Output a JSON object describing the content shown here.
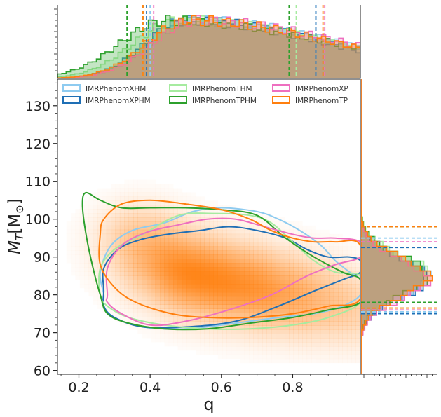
{
  "chart_data": {
    "type": "scatter",
    "title": "",
    "xlabel": "q",
    "ylabel": "M_T [M_⊙]",
    "ylabel_display": "M",
    "ylabel_sub": "T",
    "ylabel_rest": "[M",
    "ylabel_sun": "⊙",
    "ylabel_close": "]",
    "xlim": [
      0.14,
      0.99
    ],
    "ylim": [
      59,
      137
    ],
    "x_ticks": [
      0.2,
      0.4,
      0.6,
      0.8
    ],
    "x_tick_labels": [
      "0.2",
      "0.4",
      "0.6",
      "0.8"
    ],
    "y_ticks": [
      60,
      70,
      80,
      90,
      100,
      110,
      120,
      130
    ],
    "y_tick_labels": [
      "60",
      "70",
      "80",
      "90",
      "100",
      "110",
      "120",
      "130"
    ],
    "legend": {
      "placement": "top-left",
      "entries": [
        "IMRPhenomXHM",
        "IMRPhenomTHM",
        "IMRPhenomXP",
        "IMRPhenomXPHM",
        "IMRPhenomTPHM",
        "IMRPhenomTP"
      ]
    },
    "density_peak": {
      "x": 0.53,
      "y": 85
    },
    "series": [
      {
        "name": "IMRPhenomXHM",
        "color": "#8ecbf0",
        "contour": [
          [
            0.27,
            80
          ],
          [
            0.26,
            86
          ],
          [
            0.29,
            93
          ],
          [
            0.35,
            97
          ],
          [
            0.44,
            99
          ],
          [
            0.52,
            102
          ],
          [
            0.6,
            103
          ],
          [
            0.7,
            102
          ],
          [
            0.76,
            100
          ],
          [
            0.82,
            97
          ],
          [
            0.88,
            93
          ],
          [
            0.92,
            89
          ],
          [
            0.96,
            86
          ],
          [
            0.99,
            84
          ],
          [
            0.99,
            80
          ],
          [
            0.94,
            77
          ],
          [
            0.86,
            75
          ],
          [
            0.76,
            74
          ],
          [
            0.64,
            72.5
          ],
          [
            0.5,
            71
          ],
          [
            0.38,
            71.5
          ],
          [
            0.3,
            74
          ],
          [
            0.27,
            77
          ]
        ],
        "q_quantiles": [
          0.4,
          0.865
        ],
        "mt_quantiles": [
          75.5,
          95
        ]
      },
      {
        "name": "IMRPhenomXPHM",
        "color": "#1f6fb5",
        "contour": [
          [
            0.27,
            81
          ],
          [
            0.27,
            87
          ],
          [
            0.31,
            92
          ],
          [
            0.37,
            94.5
          ],
          [
            0.45,
            96
          ],
          [
            0.54,
            97
          ],
          [
            0.62,
            98
          ],
          [
            0.7,
            97
          ],
          [
            0.78,
            95
          ],
          [
            0.84,
            92
          ],
          [
            0.9,
            90
          ],
          [
            0.96,
            90
          ],
          [
            0.99,
            89
          ],
          [
            0.99,
            86
          ],
          [
            0.94,
            84
          ],
          [
            0.86,
            81
          ],
          [
            0.76,
            77
          ],
          [
            0.64,
            73
          ],
          [
            0.5,
            71.5
          ],
          [
            0.38,
            71.5
          ],
          [
            0.3,
            74
          ],
          [
            0.27,
            77
          ]
        ],
        "q_quantiles": [
          0.39,
          0.865
        ],
        "mt_quantiles": [
          75,
          92.5
        ]
      },
      {
        "name": "IMRPhenomTHM",
        "color": "#a6eba0",
        "contour": [
          [
            0.26,
            80
          ],
          [
            0.26,
            87
          ],
          [
            0.3,
            92
          ],
          [
            0.38,
            96
          ],
          [
            0.48,
            101
          ],
          [
            0.58,
            101.5
          ],
          [
            0.68,
            101
          ],
          [
            0.74,
            99
          ],
          [
            0.8,
            94
          ],
          [
            0.86,
            89
          ],
          [
            0.92,
            86
          ],
          [
            0.99,
            85
          ],
          [
            0.99,
            78
          ],
          [
            0.9,
            74
          ],
          [
            0.8,
            72
          ],
          [
            0.68,
            71
          ],
          [
            0.56,
            71
          ],
          [
            0.44,
            72
          ],
          [
            0.34,
            74
          ],
          [
            0.28,
            77
          ]
        ],
        "q_quantiles": [
          0.38,
          0.81
        ],
        "mt_quantiles": [
          76.5,
          98
        ]
      },
      {
        "name": "IMRPhenomTPHM",
        "color": "#2ca02c",
        "contour": [
          [
            0.22,
            107
          ],
          [
            0.26,
            105
          ],
          [
            0.32,
            103
          ],
          [
            0.4,
            103
          ],
          [
            0.5,
            103
          ],
          [
            0.6,
            102.5
          ],
          [
            0.7,
            101
          ],
          [
            0.78,
            95
          ],
          [
            0.86,
            90
          ],
          [
            0.94,
            86
          ],
          [
            0.99,
            84
          ],
          [
            0.99,
            78
          ],
          [
            0.9,
            76
          ],
          [
            0.8,
            74
          ],
          [
            0.68,
            72.5
          ],
          [
            0.56,
            71
          ],
          [
            0.44,
            71
          ],
          [
            0.34,
            72.5
          ],
          [
            0.28,
            75
          ],
          [
            0.26,
            80
          ],
          [
            0.24,
            87
          ],
          [
            0.22,
            96
          ],
          [
            0.21,
            104
          ]
        ],
        "q_quantiles": [
          0.335,
          0.79
        ],
        "mt_quantiles": [
          78,
          98
        ]
      },
      {
        "name": "IMRPhenomXP",
        "color": "#ee6fc0",
        "contour": [
          [
            0.28,
            80
          ],
          [
            0.28,
            87
          ],
          [
            0.32,
            93
          ],
          [
            0.39,
            96.5
          ],
          [
            0.48,
            98.5
          ],
          [
            0.56,
            100
          ],
          [
            0.64,
            100
          ],
          [
            0.72,
            98
          ],
          [
            0.8,
            96
          ],
          [
            0.86,
            95
          ],
          [
            0.92,
            95
          ],
          [
            0.99,
            94
          ],
          [
            0.99,
            90
          ],
          [
            0.92,
            88
          ],
          [
            0.84,
            85
          ],
          [
            0.74,
            80
          ],
          [
            0.62,
            76
          ],
          [
            0.5,
            73
          ],
          [
            0.4,
            72
          ],
          [
            0.32,
            75
          ],
          [
            0.28,
            78
          ]
        ],
        "q_quantiles": [
          0.41,
          0.89
        ],
        "mt_quantiles": [
          76,
          94
        ]
      },
      {
        "name": "IMRPhenomTP",
        "color": "#ff7f0e",
        "contour": [
          [
            0.27,
            100
          ],
          [
            0.32,
            104
          ],
          [
            0.4,
            105
          ],
          [
            0.5,
            104
          ],
          [
            0.6,
            102.5
          ],
          [
            0.68,
            100
          ],
          [
            0.74,
            97
          ],
          [
            0.8,
            95
          ],
          [
            0.86,
            94
          ],
          [
            0.92,
            94
          ],
          [
            0.99,
            93
          ],
          [
            0.99,
            79
          ],
          [
            0.9,
            77
          ],
          [
            0.8,
            75
          ],
          [
            0.68,
            74
          ],
          [
            0.56,
            74
          ],
          [
            0.46,
            75
          ],
          [
            0.36,
            78
          ],
          [
            0.3,
            82
          ],
          [
            0.26,
            88
          ],
          [
            0.26,
            96
          ]
        ],
        "q_quantiles": [
          0.38,
          0.885
        ],
        "mt_quantiles": [
          76.5,
          98
        ]
      }
    ]
  }
}
